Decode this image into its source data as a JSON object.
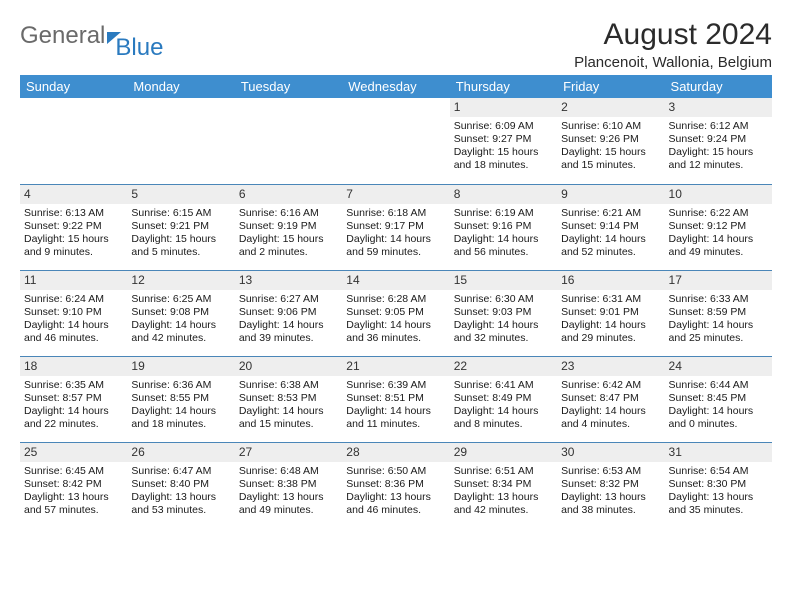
{
  "logo": {
    "text1": "General",
    "text2": "Blue"
  },
  "title": "August 2024",
  "location": "Plancenoit, Wallonia, Belgium",
  "colors": {
    "header_bg": "#3e8ecf",
    "header_text": "#ffffff",
    "row_divider": "#4a86b8",
    "daynum_bg": "#eeeeee",
    "logo_accent": "#2a7abf",
    "logo_gray": "#6a6a6a"
  },
  "day_headers": [
    "Sunday",
    "Monday",
    "Tuesday",
    "Wednesday",
    "Thursday",
    "Friday",
    "Saturday"
  ],
  "weeks": [
    [
      {
        "day": "",
        "sunrise": "",
        "sunset": "",
        "daylight": ""
      },
      {
        "day": "",
        "sunrise": "",
        "sunset": "",
        "daylight": ""
      },
      {
        "day": "",
        "sunrise": "",
        "sunset": "",
        "daylight": ""
      },
      {
        "day": "",
        "sunrise": "",
        "sunset": "",
        "daylight": ""
      },
      {
        "day": "1",
        "sunrise": "Sunrise: 6:09 AM",
        "sunset": "Sunset: 9:27 PM",
        "daylight": "Daylight: 15 hours and 18 minutes."
      },
      {
        "day": "2",
        "sunrise": "Sunrise: 6:10 AM",
        "sunset": "Sunset: 9:26 PM",
        "daylight": "Daylight: 15 hours and 15 minutes."
      },
      {
        "day": "3",
        "sunrise": "Sunrise: 6:12 AM",
        "sunset": "Sunset: 9:24 PM",
        "daylight": "Daylight: 15 hours and 12 minutes."
      }
    ],
    [
      {
        "day": "4",
        "sunrise": "Sunrise: 6:13 AM",
        "sunset": "Sunset: 9:22 PM",
        "daylight": "Daylight: 15 hours and 9 minutes."
      },
      {
        "day": "5",
        "sunrise": "Sunrise: 6:15 AM",
        "sunset": "Sunset: 9:21 PM",
        "daylight": "Daylight: 15 hours and 5 minutes."
      },
      {
        "day": "6",
        "sunrise": "Sunrise: 6:16 AM",
        "sunset": "Sunset: 9:19 PM",
        "daylight": "Daylight: 15 hours and 2 minutes."
      },
      {
        "day": "7",
        "sunrise": "Sunrise: 6:18 AM",
        "sunset": "Sunset: 9:17 PM",
        "daylight": "Daylight: 14 hours and 59 minutes."
      },
      {
        "day": "8",
        "sunrise": "Sunrise: 6:19 AM",
        "sunset": "Sunset: 9:16 PM",
        "daylight": "Daylight: 14 hours and 56 minutes."
      },
      {
        "day": "9",
        "sunrise": "Sunrise: 6:21 AM",
        "sunset": "Sunset: 9:14 PM",
        "daylight": "Daylight: 14 hours and 52 minutes."
      },
      {
        "day": "10",
        "sunrise": "Sunrise: 6:22 AM",
        "sunset": "Sunset: 9:12 PM",
        "daylight": "Daylight: 14 hours and 49 minutes."
      }
    ],
    [
      {
        "day": "11",
        "sunrise": "Sunrise: 6:24 AM",
        "sunset": "Sunset: 9:10 PM",
        "daylight": "Daylight: 14 hours and 46 minutes."
      },
      {
        "day": "12",
        "sunrise": "Sunrise: 6:25 AM",
        "sunset": "Sunset: 9:08 PM",
        "daylight": "Daylight: 14 hours and 42 minutes."
      },
      {
        "day": "13",
        "sunrise": "Sunrise: 6:27 AM",
        "sunset": "Sunset: 9:06 PM",
        "daylight": "Daylight: 14 hours and 39 minutes."
      },
      {
        "day": "14",
        "sunrise": "Sunrise: 6:28 AM",
        "sunset": "Sunset: 9:05 PM",
        "daylight": "Daylight: 14 hours and 36 minutes."
      },
      {
        "day": "15",
        "sunrise": "Sunrise: 6:30 AM",
        "sunset": "Sunset: 9:03 PM",
        "daylight": "Daylight: 14 hours and 32 minutes."
      },
      {
        "day": "16",
        "sunrise": "Sunrise: 6:31 AM",
        "sunset": "Sunset: 9:01 PM",
        "daylight": "Daylight: 14 hours and 29 minutes."
      },
      {
        "day": "17",
        "sunrise": "Sunrise: 6:33 AM",
        "sunset": "Sunset: 8:59 PM",
        "daylight": "Daylight: 14 hours and 25 minutes."
      }
    ],
    [
      {
        "day": "18",
        "sunrise": "Sunrise: 6:35 AM",
        "sunset": "Sunset: 8:57 PM",
        "daylight": "Daylight: 14 hours and 22 minutes."
      },
      {
        "day": "19",
        "sunrise": "Sunrise: 6:36 AM",
        "sunset": "Sunset: 8:55 PM",
        "daylight": "Daylight: 14 hours and 18 minutes."
      },
      {
        "day": "20",
        "sunrise": "Sunrise: 6:38 AM",
        "sunset": "Sunset: 8:53 PM",
        "daylight": "Daylight: 14 hours and 15 minutes."
      },
      {
        "day": "21",
        "sunrise": "Sunrise: 6:39 AM",
        "sunset": "Sunset: 8:51 PM",
        "daylight": "Daylight: 14 hours and 11 minutes."
      },
      {
        "day": "22",
        "sunrise": "Sunrise: 6:41 AM",
        "sunset": "Sunset: 8:49 PM",
        "daylight": "Daylight: 14 hours and 8 minutes."
      },
      {
        "day": "23",
        "sunrise": "Sunrise: 6:42 AM",
        "sunset": "Sunset: 8:47 PM",
        "daylight": "Daylight: 14 hours and 4 minutes."
      },
      {
        "day": "24",
        "sunrise": "Sunrise: 6:44 AM",
        "sunset": "Sunset: 8:45 PM",
        "daylight": "Daylight: 14 hours and 0 minutes."
      }
    ],
    [
      {
        "day": "25",
        "sunrise": "Sunrise: 6:45 AM",
        "sunset": "Sunset: 8:42 PM",
        "daylight": "Daylight: 13 hours and 57 minutes."
      },
      {
        "day": "26",
        "sunrise": "Sunrise: 6:47 AM",
        "sunset": "Sunset: 8:40 PM",
        "daylight": "Daylight: 13 hours and 53 minutes."
      },
      {
        "day": "27",
        "sunrise": "Sunrise: 6:48 AM",
        "sunset": "Sunset: 8:38 PM",
        "daylight": "Daylight: 13 hours and 49 minutes."
      },
      {
        "day": "28",
        "sunrise": "Sunrise: 6:50 AM",
        "sunset": "Sunset: 8:36 PM",
        "daylight": "Daylight: 13 hours and 46 minutes."
      },
      {
        "day": "29",
        "sunrise": "Sunrise: 6:51 AM",
        "sunset": "Sunset: 8:34 PM",
        "daylight": "Daylight: 13 hours and 42 minutes."
      },
      {
        "day": "30",
        "sunrise": "Sunrise: 6:53 AM",
        "sunset": "Sunset: 8:32 PM",
        "daylight": "Daylight: 13 hours and 38 minutes."
      },
      {
        "day": "31",
        "sunrise": "Sunrise: 6:54 AM",
        "sunset": "Sunset: 8:30 PM",
        "daylight": "Daylight: 13 hours and 35 minutes."
      }
    ]
  ]
}
